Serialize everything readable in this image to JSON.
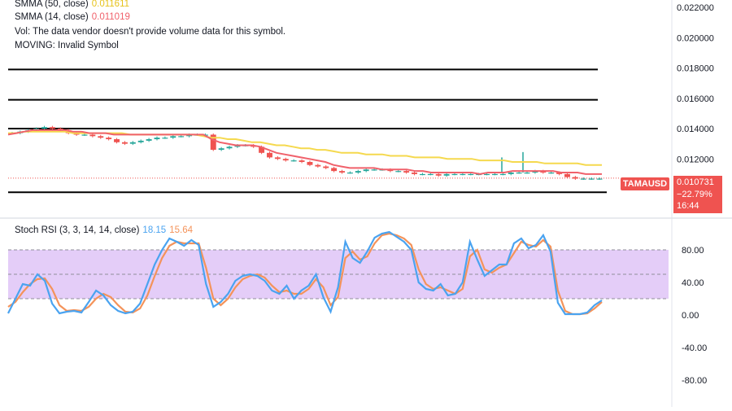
{
  "legend": {
    "sma50": {
      "label": "SMMA (50, close)",
      "value": "0.011611",
      "color": "#f5d94e"
    },
    "sma14": {
      "label": "SMMA (14, close)",
      "value": "0.011019",
      "color": "#f0616b"
    },
    "vol": "Vol: The data vendor doesn't provide volume data for this symbol.",
    "moving": "MOVING: Invalid Symbol"
  },
  "stoch_legend": {
    "label": "Stoch RSI (3, 3, 14, 14, close)",
    "k": "18.15",
    "d": "15.64",
    "k_color": "#4aa3f0",
    "d_color": "#f4935a"
  },
  "symbol_tag": "TAMAUSD",
  "price_badge": {
    "price": "0.010731",
    "change": "−22.79%",
    "countdown": "16:44"
  },
  "colors": {
    "up": "#26a69a",
    "down": "#ef5350",
    "badge": "#ef5350",
    "band": "#e1c8f7"
  },
  "chart_data": [
    {
      "type": "candlestick",
      "y_ticks": [
        "0.022000",
        "0.020000",
        "0.018000",
        "0.016000",
        "0.014000",
        "0.012000"
      ],
      "ylim": [
        0.0092,
        0.0224
      ],
      "horizontal_lines": [
        0.0179,
        0.0159,
        0.014,
        0.0098
      ],
      "close": [
        0.0137,
        0.0138,
        0.0139,
        0.014,
        0.0141,
        0.014,
        0.0139,
        0.0137,
        0.0136,
        0.0136,
        0.0135,
        0.0134,
        0.0133,
        0.0131,
        0.013,
        0.0131,
        0.0132,
        0.0133,
        0.0134,
        0.0134,
        0.0135,
        0.0135,
        0.0136,
        0.0136,
        0.0136,
        0.0126,
        0.0127,
        0.0128,
        0.0129,
        0.0129,
        0.0128,
        0.0124,
        0.0121,
        0.012,
        0.0119,
        0.0119,
        0.0118,
        0.0116,
        0.0115,
        0.0114,
        0.0112,
        0.0111,
        0.0111,
        0.0112,
        0.0113,
        0.0113,
        0.0113,
        0.0112,
        0.0112,
        0.0111,
        0.011,
        0.011,
        0.011,
        0.0109,
        0.011,
        0.011,
        0.011,
        0.011,
        0.011,
        0.011,
        0.011,
        0.011,
        0.0111,
        0.0111,
        0.0111,
        0.0112,
        0.0111,
        0.0111,
        0.011,
        0.0108,
        0.0107,
        0.0107,
        0.0107,
        0.0107
      ],
      "sma50": [
        0.0137,
        0.0137,
        0.0138,
        0.0138,
        0.0138,
        0.0138,
        0.0138,
        0.0138,
        0.0137,
        0.0137,
        0.0137,
        0.0137,
        0.0137,
        0.0137,
        0.0137,
        0.0136,
        0.0136,
        0.0136,
        0.0136,
        0.0136,
        0.0136,
        0.0136,
        0.0136,
        0.0136,
        0.0135,
        0.0134,
        0.0134,
        0.0133,
        0.0133,
        0.0132,
        0.0131,
        0.0131,
        0.013,
        0.0129,
        0.0129,
        0.0128,
        0.0127,
        0.0127,
        0.0126,
        0.0126,
        0.0125,
        0.0124,
        0.0124,
        0.0124,
        0.0123,
        0.0123,
        0.0123,
        0.0122,
        0.0122,
        0.0122,
        0.0121,
        0.0121,
        0.0121,
        0.0121,
        0.012,
        0.012,
        0.012,
        0.012,
        0.0119,
        0.0119,
        0.0119,
        0.0119,
        0.0118,
        0.0118,
        0.0118,
        0.0118,
        0.0117,
        0.0117,
        0.0117,
        0.0117,
        0.0117,
        0.0116,
        0.0116,
        0.0116
      ],
      "sma14": [
        0.0136,
        0.0137,
        0.0138,
        0.0139,
        0.0139,
        0.0139,
        0.0139,
        0.0139,
        0.0138,
        0.0138,
        0.0137,
        0.0137,
        0.0137,
        0.0136,
        0.0136,
        0.0136,
        0.0136,
        0.0136,
        0.0136,
        0.0136,
        0.0136,
        0.0136,
        0.0136,
        0.0136,
        0.0136,
        0.0133,
        0.0131,
        0.013,
        0.0129,
        0.0129,
        0.0129,
        0.0128,
        0.0126,
        0.0124,
        0.0123,
        0.0122,
        0.0121,
        0.012,
        0.0119,
        0.0118,
        0.0116,
        0.0115,
        0.0114,
        0.0114,
        0.0114,
        0.0114,
        0.0113,
        0.0113,
        0.0113,
        0.0113,
        0.0112,
        0.0112,
        0.0111,
        0.0111,
        0.0111,
        0.0111,
        0.0111,
        0.0111,
        0.011,
        0.0111,
        0.0111,
        0.0111,
        0.0112,
        0.0112,
        0.0112,
        0.0112,
        0.0112,
        0.0112,
        0.0111,
        0.0111,
        0.0111,
        0.011,
        0.011,
        0.011
      ]
    },
    {
      "type": "line",
      "y_ticks": [
        "80.00",
        "40.00",
        "0.00",
        "-40.00",
        "-80.00"
      ],
      "ylim": [
        -96,
        110
      ],
      "band": [
        20,
        80
      ],
      "midline": 50,
      "series": [
        {
          "name": "K",
          "values": [
            2,
            20,
            38,
            36,
            50,
            42,
            14,
            2,
            4,
            5,
            3,
            16,
            30,
            24,
            12,
            5,
            2,
            4,
            14,
            38,
            62,
            80,
            94,
            90,
            85,
            92,
            86,
            38,
            10,
            16,
            26,
            42,
            48,
            50,
            48,
            42,
            30,
            26,
            36,
            20,
            30,
            36,
            50,
            22,
            4,
            34,
            90,
            70,
            64,
            78,
            95,
            100,
            102,
            96,
            90,
            80,
            40,
            32,
            30,
            38,
            24,
            26,
            40,
            90,
            68,
            48,
            55,
            62,
            62,
            88,
            94,
            82,
            86,
            98,
            78,
            15,
            1,
            1,
            1,
            3,
            12,
            18
          ]
        },
        {
          "name": "D",
          "values": [
            10,
            16,
            28,
            38,
            44,
            45,
            32,
            12,
            5,
            6,
            5,
            10,
            20,
            26,
            22,
            12,
            4,
            3,
            8,
            24,
            48,
            70,
            85,
            90,
            88,
            88,
            88,
            58,
            20,
            12,
            20,
            34,
            44,
            48,
            50,
            46,
            36,
            28,
            30,
            26,
            26,
            32,
            44,
            34,
            12,
            22,
            70,
            78,
            68,
            72,
            88,
            98,
            100,
            98,
            94,
            86,
            56,
            38,
            32,
            34,
            30,
            26,
            32,
            72,
            80,
            56,
            52,
            58,
            62,
            76,
            90,
            86,
            84,
            92,
            84,
            30,
            5,
            1,
            1,
            2,
            8,
            16
          ]
        }
      ]
    }
  ]
}
